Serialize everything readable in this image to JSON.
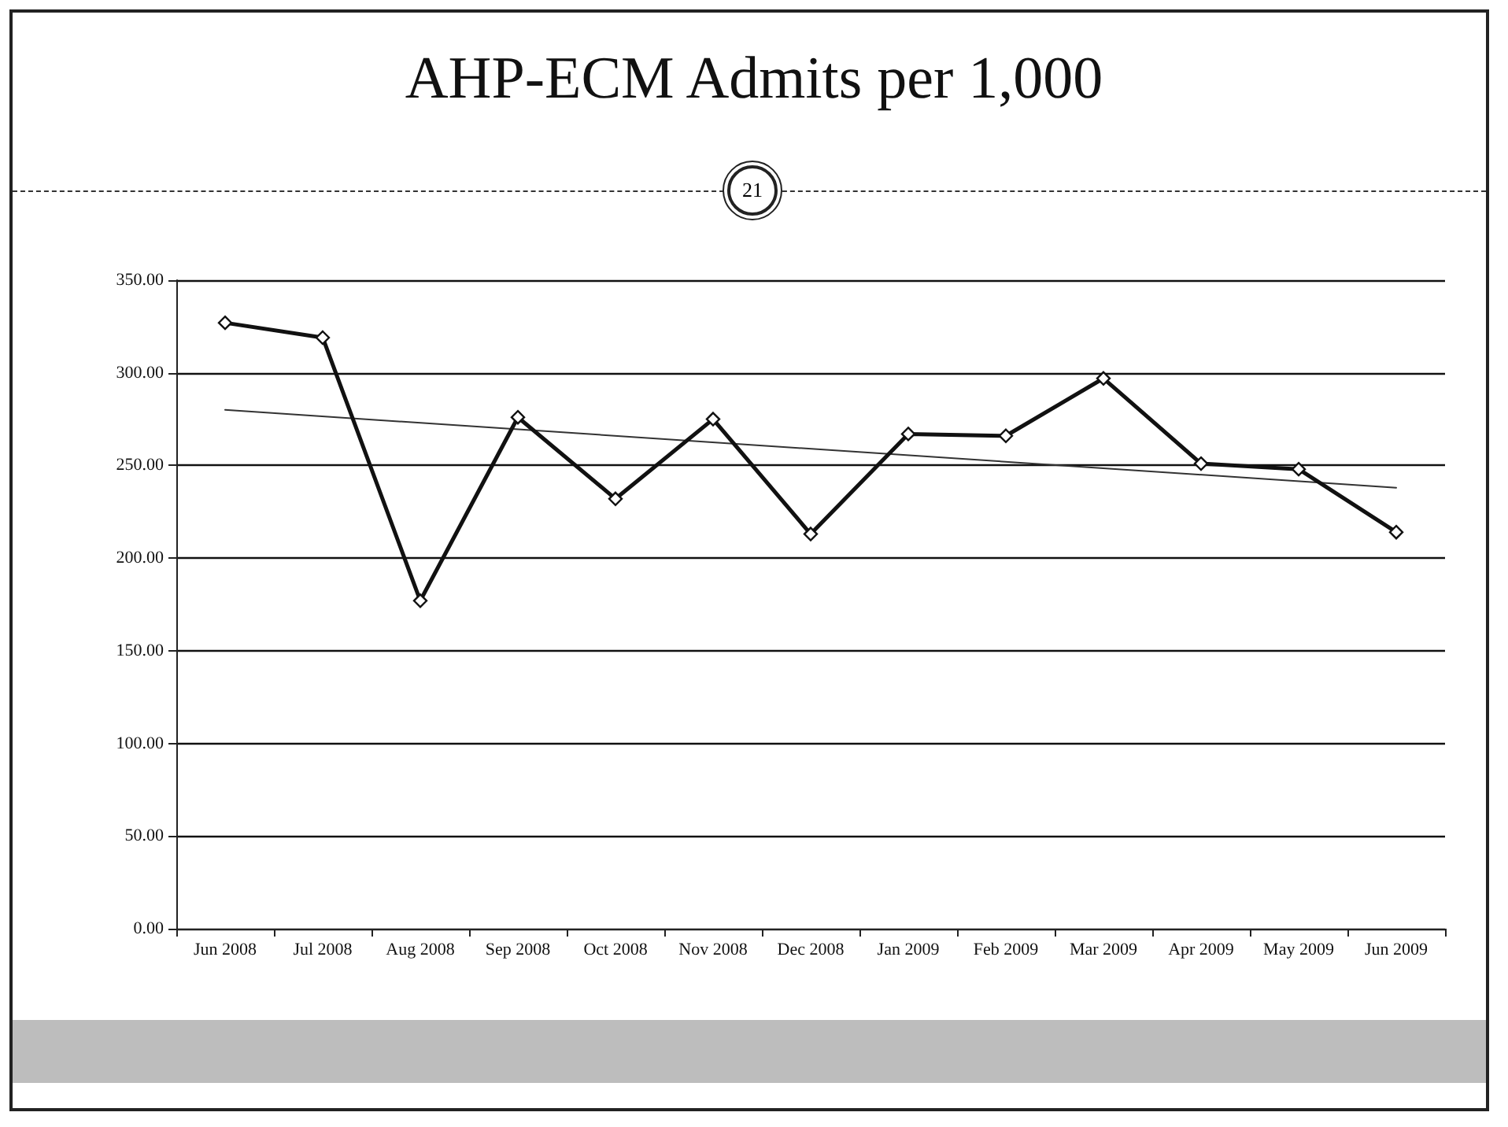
{
  "chart_data": {
    "type": "line",
    "title": "AHP-ECM Admits per 1,000",
    "annotations": [
      "21"
    ],
    "categories": [
      "Jun 2008",
      "Jul 2008",
      "Aug 2008",
      "Sep 2008",
      "Oct 2008",
      "Nov 2008",
      "Dec 2008",
      "Jan 2009",
      "Feb 2009",
      "Mar 2009",
      "Apr 2009",
      "May 2009",
      "Jun 2009"
    ],
    "series": [
      {
        "color": "#111111",
        "marker": "diamond",
        "values": [
          327,
          319,
          177,
          276,
          232,
          275,
          213,
          267,
          266,
          297,
          251,
          248,
          214
        ]
      },
      {
        "type": "line",
        "color": "#333333",
        "marker": "none",
        "x": [
          "Jun 2008",
          "Jun 2009"
        ],
        "values": [
          280,
          238
        ]
      }
    ],
    "ylim": [
      0,
      350
    ],
    "yticks": [
      {
        "value": 0,
        "label": "0.00"
      },
      {
        "value": 50,
        "label": "50.00"
      },
      {
        "value": 100,
        "label": "100.00"
      },
      {
        "value": 150,
        "label": "150.00"
      },
      {
        "value": 200,
        "label": "200.00"
      },
      {
        "value": 250,
        "label": "250.00"
      },
      {
        "value": 300,
        "label": "300.00"
      },
      {
        "value": 350,
        "label": "350.00"
      }
    ],
    "grid": "y"
  }
}
